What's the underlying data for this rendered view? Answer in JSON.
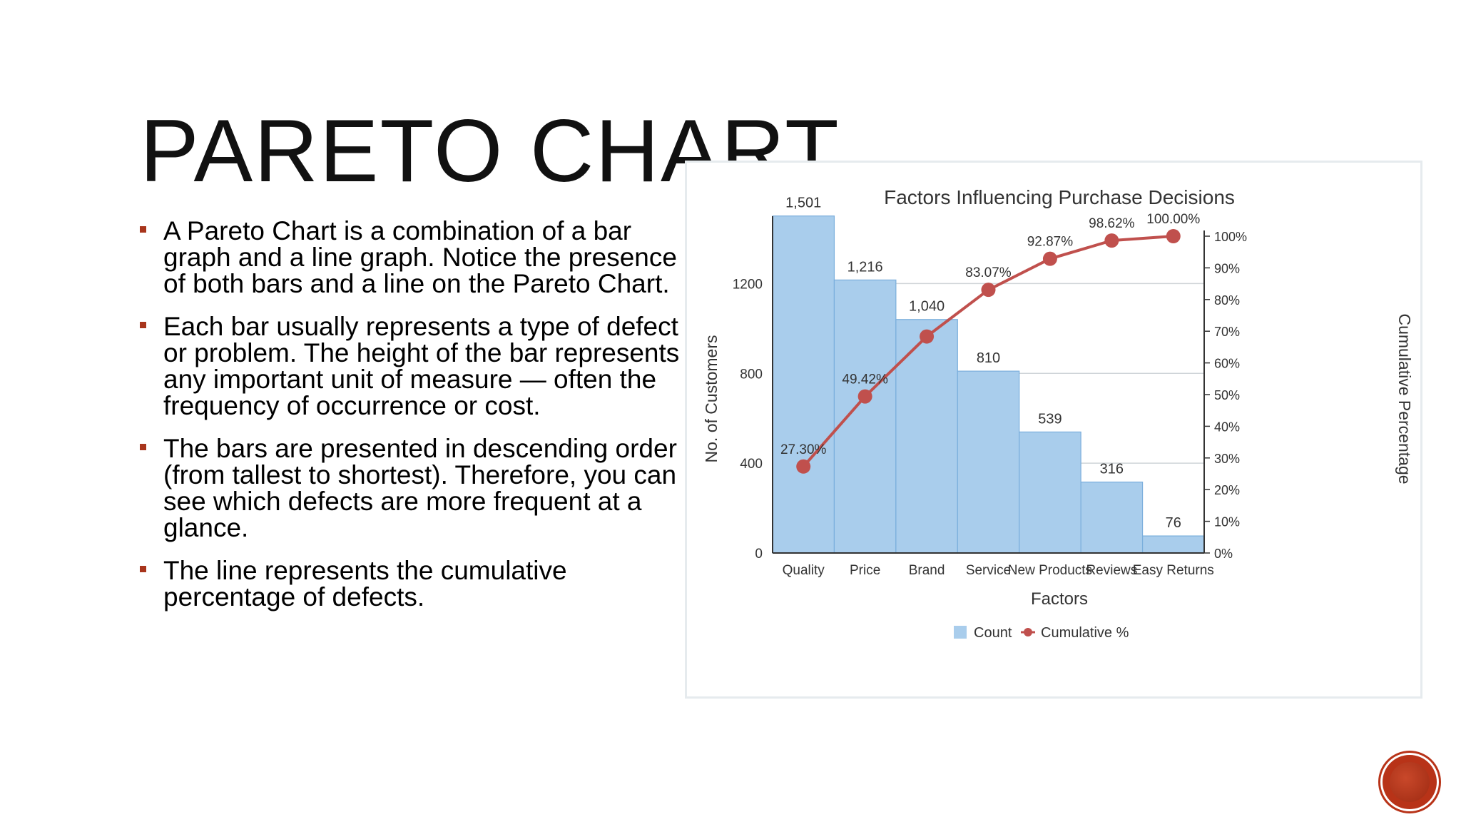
{
  "slide": {
    "title": "PARETO CHART",
    "bullets": [
      "A Pareto Chart is a combination of a bar graph and a line graph. Notice the presence of both bars and a line on the Pareto Chart.",
      "Each bar usually represents a type of defect or problem. The height of the bar represents any important unit of measure — often the frequency of occurrence or cost.",
      "The bars are presented in descending order (from tallest to shortest). Therefore, you can see which defects are more frequent at a glance.",
      "The line represents the cumulative percentage of defects."
    ],
    "accent_color": "#a8351c"
  },
  "chart_data": {
    "type": "bar",
    "title": "Factors Influencing Purchase Decisions",
    "xlabel": "Factors",
    "ylabel": "No. of Customers",
    "y2label": "Cumulative Percentage",
    "categories": [
      "Quality",
      "Price",
      "Brand",
      "Service",
      "New Products",
      "Reviews",
      "Easy Returns"
    ],
    "series": [
      {
        "name": "Count",
        "type": "bar",
        "axis": "left",
        "values": [
          1501,
          1216,
          1040,
          810,
          539,
          316,
          76
        ],
        "labels": [
          "1,501",
          "1,216",
          "1,040",
          "810",
          "539",
          "316",
          "76"
        ],
        "color": "#a9cdec"
      },
      {
        "name": "Cumulative %",
        "type": "line",
        "axis": "right",
        "values": [
          27.3,
          49.42,
          68.34,
          83.07,
          92.87,
          98.62,
          100.0
        ],
        "labels": [
          "27.30%",
          "49.42%",
          "",
          "83.07%",
          "92.87%",
          "98.62%",
          "100.00%"
        ],
        "color": "#c0504d"
      }
    ],
    "ylim": [
      0,
      1500
    ],
    "yticks": [
      0,
      400,
      800,
      1200
    ],
    "y2lim": [
      0,
      100
    ],
    "y2ticks": [
      "0%",
      "10%",
      "20%",
      "30%",
      "40%",
      "50%",
      "60%",
      "70%",
      "80%",
      "90%",
      "100%"
    ],
    "grid": true,
    "legend": "bottom"
  }
}
